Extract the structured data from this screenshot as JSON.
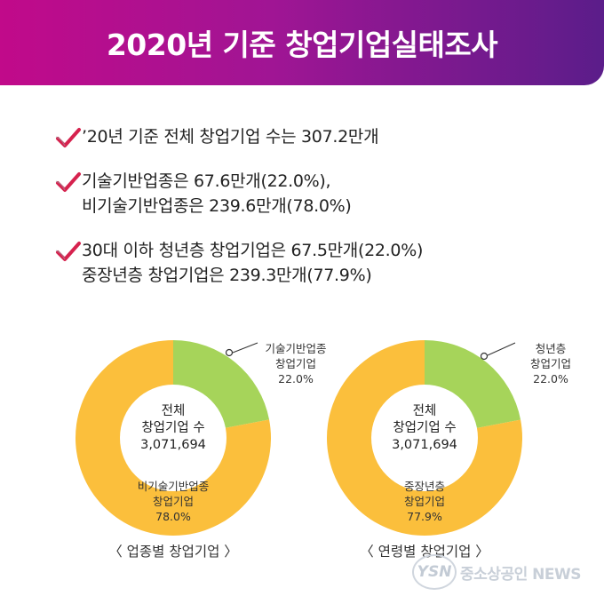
{
  "header": {
    "title": "2020년 기준 창업기업실태조사"
  },
  "bullets": [
    {
      "lines": [
        "’20년 기준 전체 창업기업 수는 307.2만개"
      ]
    },
    {
      "lines": [
        "기술기반업종은 67.6만개(22.0%),",
        "비기술기반업종은 239.6만개(78.0%)"
      ]
    },
    {
      "lines": [
        "30대 이하 청년층 창업기업은 67.5만개(22.0%)",
        "중장년층 창업기업은 239.3만개(77.9%)"
      ]
    }
  ],
  "colors": {
    "green": "#a6d45a",
    "yellow": "#fbbf3c",
    "check": "#d6224e",
    "header_start": "#c10a8a",
    "header_end": "#5b1d8a"
  },
  "chart_data": [
    {
      "type": "pie",
      "title": "",
      "caption": "〈 업종별 창업기업 〉",
      "center": {
        "line1": "전체",
        "line2": "창업기업 수",
        "value": "3,071,694"
      },
      "slices": [
        {
          "name": "기술기반업종 창업기업",
          "label1": "기술기반업종",
          "label2": "창업기업",
          "value": 22.0,
          "display": "22.0%",
          "color": "#a6d45a"
        },
        {
          "name": "비기술기반업종 창업기업",
          "label1": "비기술기반업종",
          "label2": "창업기업",
          "value": 78.0,
          "display": "78.0%",
          "color": "#fbbf3c"
        }
      ]
    },
    {
      "type": "pie",
      "title": "",
      "caption": "〈 연령별 창업기업 〉",
      "center": {
        "line1": "전체",
        "line2": "창업기업 수",
        "value": "3,071,694"
      },
      "slices": [
        {
          "name": "청년층 창업기업",
          "label1": "청년층",
          "label2": "창업기업",
          "value": 22.0,
          "display": "22.0%",
          "color": "#a6d45a"
        },
        {
          "name": "중장년층 창업기업",
          "label1": "중장년층",
          "label2": "창업기업",
          "value": 77.9,
          "display": "77.9%",
          "color": "#fbbf3c"
        }
      ]
    }
  ],
  "logo": {
    "mark": "YSN",
    "text": "중소상공인 NEWS"
  }
}
